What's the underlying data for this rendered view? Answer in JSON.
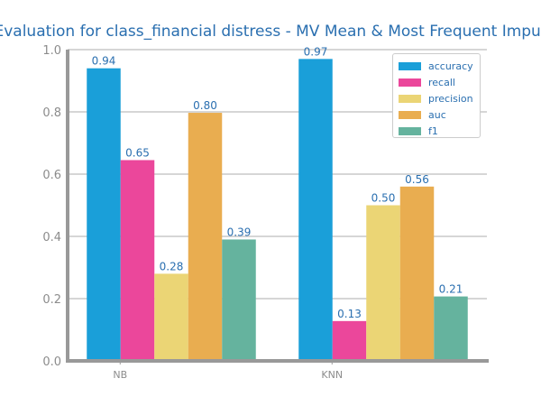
{
  "chart_data": {
    "type": "bar",
    "title": "Evaluation for class_financial distress - MV Mean & Most Frequent Imput",
    "xlabel": "",
    "ylabel": "",
    "ylim": [
      0,
      1.0
    ],
    "yticks": [
      "0.0",
      "0.2",
      "0.4",
      "0.6",
      "0.8",
      "1.0"
    ],
    "grid": "horizontal",
    "legend_position": "top-right",
    "categories": [
      "NB",
      "KNN"
    ],
    "series": [
      {
        "name": "accuracy",
        "color": "#1a9fd9",
        "values": [
          0.94,
          0.97
        ],
        "labels": [
          "0.94",
          "0.97"
        ]
      },
      {
        "name": "recall",
        "color": "#eb479b",
        "values": [
          0.645,
          0.128
        ],
        "labels": [
          "0.65",
          "0.13"
        ]
      },
      {
        "name": "precision",
        "color": "#ebd575",
        "values": [
          0.28,
          0.5
        ],
        "labels": [
          "0.28",
          "0.50"
        ]
      },
      {
        "name": "auc",
        "color": "#e9ad50",
        "values": [
          0.797,
          0.56
        ],
        "labels": [
          "0.80",
          "0.56"
        ]
      },
      {
        "name": "f1",
        "color": "#65b39e",
        "values": [
          0.39,
          0.207
        ],
        "labels": [
          "0.39",
          "0.21"
        ]
      }
    ]
  }
}
